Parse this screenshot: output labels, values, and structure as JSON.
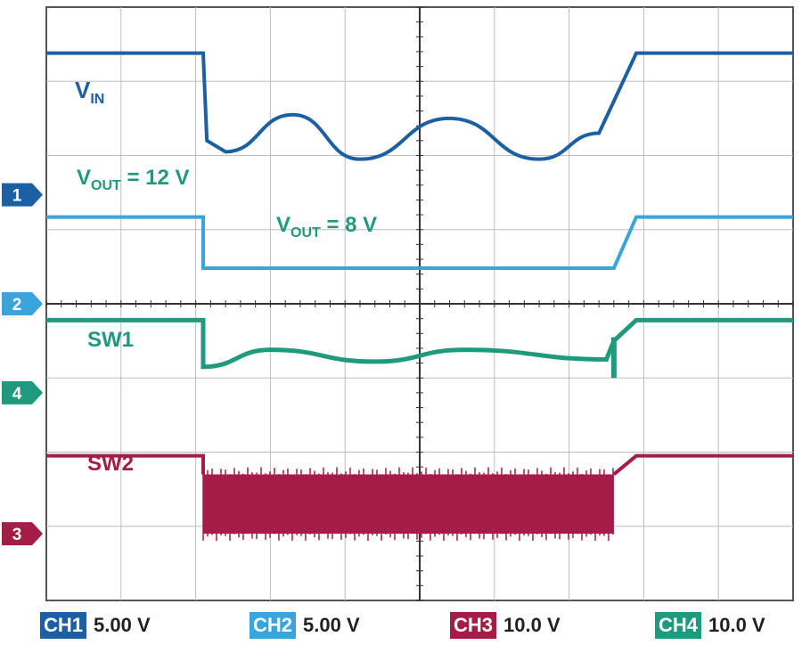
{
  "chart_data": {
    "type": "line",
    "grid": true,
    "divisions": {
      "x": 10,
      "y": 8
    },
    "annotations": {
      "vin": {
        "main": "V",
        "sub": "IN",
        "tail": ""
      },
      "vout12": {
        "main": "V",
        "sub": "OUT",
        "tail": " = 12 V"
      },
      "vout8": {
        "main": "V",
        "sub": "OUT",
        "tail": " = 8 V"
      },
      "sw1": "SW1",
      "sw2": "SW2"
    },
    "markers": [
      "1",
      "2",
      "4",
      "3"
    ],
    "series": [
      {
        "channel": "CH1",
        "name": "V_IN",
        "color": "#1d5fa3",
        "y_div": 0.62,
        "drop_y_div": 1.8,
        "wave": [
          {
            "x": 2.4,
            "y": 1.95
          },
          {
            "x": 3.3,
            "y": 1.45
          },
          {
            "x": 4.2,
            "y": 2.05
          },
          {
            "x": 5.4,
            "y": 1.5
          },
          {
            "x": 6.6,
            "y": 2.05
          },
          {
            "x": 7.4,
            "y": 1.7
          }
        ],
        "ramp_end_x": 7.9
      },
      {
        "channel": "CH2",
        "name": "V_OUT",
        "color": "#3aa4dc",
        "y_div_high": 2.83,
        "y_div_low": 3.52,
        "step_x": 2.1,
        "ramp_start_x": 7.6,
        "ramp_end_x": 7.9
      },
      {
        "channel": "CH4",
        "name": "SW1",
        "color": "#1f9a7d",
        "y_div": 4.22,
        "drop_x": 2.1,
        "wave": [
          {
            "x": 2.1,
            "y": 4.85
          },
          {
            "x": 3.0,
            "y": 4.62
          },
          {
            "x": 4.4,
            "y": 4.78
          },
          {
            "x": 5.6,
            "y": 4.62
          },
          {
            "x": 7.5,
            "y": 4.75
          }
        ]
      },
      {
        "channel": "CH3",
        "name": "SW2",
        "color": "#a51d47",
        "y_div": 6.05,
        "band_top": 6.3,
        "band_bottom": 7.1,
        "band_start_x": 2.1,
        "band_end_x": 7.6
      }
    ]
  },
  "footer": [
    {
      "tag": "CH1",
      "value": "5.00 V",
      "color": "#1d5fa3"
    },
    {
      "tag": "CH2",
      "value": "5.00 V",
      "color": "#3aa4dc"
    },
    {
      "tag": "CH3",
      "value": "10.0 V",
      "color": "#a51d47"
    },
    {
      "tag": "CH4",
      "value": "10.0 V",
      "color": "#1f9a7d"
    }
  ]
}
